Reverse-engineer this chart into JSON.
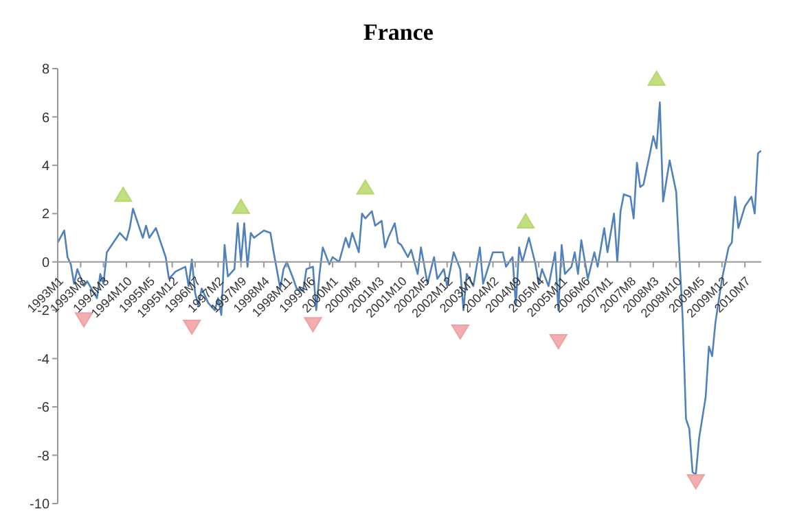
{
  "chart_data": {
    "type": "line",
    "title": "France",
    "xlim": [
      "1993-01",
      "2010-12"
    ],
    "xticks": [
      {
        "value": "1993-01",
        "label": "1993M1"
      },
      {
        "value": "1993-08",
        "label": "1993M8"
      },
      {
        "value": "1994-03",
        "label": "1994M3"
      },
      {
        "value": "1994-10",
        "label": "1994M10"
      },
      {
        "value": "1995-05",
        "label": "1995M5"
      },
      {
        "value": "1995-12",
        "label": "1995M12"
      },
      {
        "value": "1996-07",
        "label": "1996M7"
      },
      {
        "value": "1997-02",
        "label": "1997M2"
      },
      {
        "value": "1997-09",
        "label": "1997M9"
      },
      {
        "value": "1998-04",
        "label": "1998M4"
      },
      {
        "value": "1998-11",
        "label": "1998M11"
      },
      {
        "value": "1999-06",
        "label": "1999M6"
      },
      {
        "value": "2000-01",
        "label": "2000M1"
      },
      {
        "value": "2000-08",
        "label": "2000M8"
      },
      {
        "value": "2001-03",
        "label": "2001M3"
      },
      {
        "value": "2001-10",
        "label": "2001M10"
      },
      {
        "value": "2002-05",
        "label": "2002M5"
      },
      {
        "value": "2002-12",
        "label": "2002M12"
      },
      {
        "value": "2003-07",
        "label": "2003M7"
      },
      {
        "value": "2004-02",
        "label": "2004M2"
      },
      {
        "value": "2004-09",
        "label": "2004M9"
      },
      {
        "value": "2005-04",
        "label": "2005M4"
      },
      {
        "value": "2005-11",
        "label": "2005M11"
      },
      {
        "value": "2006-06",
        "label": "2006M6"
      },
      {
        "value": "2007-01",
        "label": "2007M1"
      },
      {
        "value": "2007-08",
        "label": "2007M8"
      },
      {
        "value": "2008-03",
        "label": "2008M3"
      },
      {
        "value": "2008-10",
        "label": "2008M10"
      },
      {
        "value": "2009-05",
        "label": "2009M5"
      },
      {
        "value": "2009-12",
        "label": "2009M12"
      },
      {
        "value": "2010-07",
        "label": "2010M7"
      }
    ],
    "ylim": [
      -10,
      8
    ],
    "yticks": [
      -10,
      -8,
      -6,
      -4,
      -2,
      0,
      2,
      4,
      6,
      8
    ],
    "grid": false,
    "series": [
      {
        "color": "#4f81bd",
        "marker": "none",
        "line_style": "solid",
        "x": [
          "1993-01",
          "1993-03",
          "1993-04",
          "1993-05",
          "1993-06",
          "1993-07",
          "1993-09",
          "1993-10",
          "1994-01",
          "1994-02",
          "1994-03",
          "1994-04",
          "1994-08",
          "1994-10",
          "1994-11",
          "1994-12",
          "1995-03",
          "1995-04",
          "1995-05",
          "1995-07",
          "1995-10",
          "1995-11",
          "1996-01",
          "1996-04",
          "1996-05",
          "1996-06",
          "1996-07",
          "1996-08",
          "1996-09",
          "1996-11",
          "1997-01",
          "1997-02",
          "1997-03",
          "1997-04",
          "1997-05",
          "1997-07",
          "1997-08",
          "1997-09",
          "1997-10",
          "1997-11",
          "1997-12",
          "1998-01",
          "1998-02",
          "1998-04",
          "1998-06",
          "1998-07",
          "1998-09",
          "1998-10",
          "1998-11",
          "1999-01",
          "1999-02",
          "1999-04",
          "1999-05",
          "1999-07",
          "1999-08",
          "1999-09",
          "1999-10",
          "1999-12",
          "2000-01",
          "2000-03",
          "2000-05",
          "2000-06",
          "2000-07",
          "2000-09",
          "2000-10",
          "2000-11",
          "2001-01",
          "2001-02",
          "2001-04",
          "2001-05",
          "2001-06",
          "2001-08",
          "2001-09",
          "2001-10",
          "2001-12",
          "2002-01",
          "2002-03",
          "2002-04",
          "2002-06",
          "2002-08",
          "2002-09",
          "2002-11",
          "2002-12",
          "2003-02",
          "2003-04",
          "2003-05",
          "2003-06",
          "2003-08",
          "2003-10",
          "2003-11",
          "2004-02",
          "2004-05",
          "2004-06",
          "2004-08",
          "2004-09",
          "2004-10",
          "2004-11",
          "2005-01",
          "2005-03",
          "2005-04",
          "2005-05",
          "2005-07",
          "2005-09",
          "2005-10",
          "2005-11",
          "2005-12",
          "2006-02",
          "2006-03",
          "2006-04",
          "2006-05",
          "2006-07",
          "2006-09",
          "2006-10",
          "2006-12",
          "2007-01",
          "2007-03",
          "2007-04",
          "2007-05",
          "2007-06",
          "2007-08",
          "2007-09",
          "2007-10",
          "2007-11",
          "2007-12",
          "2008-02",
          "2008-03",
          "2008-04",
          "2008-05",
          "2008-06",
          "2008-08",
          "2008-10",
          "2008-11",
          "2008-12",
          "2009-01",
          "2009-02",
          "2009-03",
          "2009-04",
          "2009-05",
          "2009-07",
          "2009-08",
          "2009-09",
          "2009-10",
          "2009-12",
          "2010-02",
          "2010-03",
          "2010-04",
          "2010-05",
          "2010-07",
          "2010-09",
          "2010-10",
          "2010-11",
          "2010-12"
        ],
        "values": [
          0.8,
          1.3,
          0.2,
          -0.1,
          -0.9,
          -0.3,
          -1.0,
          -0.8,
          -1.5,
          -0.5,
          -0.9,
          0.4,
          1.2,
          0.9,
          1.4,
          2.2,
          1.0,
          1.5,
          1.0,
          1.4,
          0.2,
          -0.7,
          -0.4,
          -0.2,
          -1.0,
          0.1,
          -1.3,
          -1.8,
          -1.1,
          -1.7,
          -2.0,
          -1.5,
          -2.2,
          0.7,
          -0.6,
          -0.3,
          1.6,
          0.0,
          1.6,
          -0.2,
          1.2,
          1.0,
          1.1,
          1.3,
          1.2,
          0.4,
          -1.1,
          -0.3,
          0.0,
          -0.7,
          -1.1,
          -1.2,
          -0.3,
          -0.2,
          -2.0,
          -0.5,
          0.6,
          -0.1,
          0.2,
          0.0,
          1.0,
          0.6,
          1.2,
          0.4,
          2.0,
          1.8,
          2.1,
          1.5,
          1.7,
          0.6,
          1.0,
          1.6,
          0.8,
          0.7,
          0.2,
          0.5,
          -0.5,
          0.6,
          -0.9,
          0.2,
          -0.7,
          -0.3,
          -1.0,
          0.4,
          -0.3,
          -2.0,
          -0.5,
          -1.0,
          0.6,
          -0.9,
          0.4,
          0.4,
          -0.2,
          0.2,
          -1.8,
          0.6,
          0.0,
          1.0,
          -0.1,
          -0.9,
          -0.3,
          -1.0,
          0.4,
          -2.0,
          0.7,
          -0.5,
          -0.2,
          0.4,
          -0.5,
          0.9,
          -0.7,
          0.4,
          -0.2,
          1.4,
          0.4,
          2.0,
          0.0,
          2.1,
          2.8,
          2.7,
          1.8,
          4.1,
          3.1,
          3.2,
          4.5,
          5.2,
          4.7,
          6.6,
          2.5,
          4.2,
          2.9,
          0.2,
          -2.4,
          -6.5,
          -6.9,
          -8.7,
          -8.8,
          -7.3,
          -5.6,
          -3.5,
          -3.9,
          -2.5,
          -0.7,
          0.6,
          0.8,
          2.7,
          1.4,
          2.3,
          2.7,
          2.0,
          4.5,
          4.6
        ]
      },
      {
        "type": "scatter",
        "color": "#b6d86a",
        "marker": "triangle",
        "x": [
          "1994-09",
          "1997-09",
          "2000-11",
          "2004-12",
          "2008-04"
        ],
        "values": [
          2.8,
          2.3,
          3.1,
          1.7,
          7.6
        ]
      },
      {
        "type": "scatter",
        "color": "#f0a0a0",
        "marker": "triangle",
        "x": [
          "1993-09",
          "1996-06",
          "1999-07",
          "2003-04",
          "2005-10",
          "2009-04"
        ],
        "values": [
          -2.4,
          -2.7,
          -2.6,
          -2.9,
          -3.3,
          -9.1
        ]
      }
    ]
  }
}
